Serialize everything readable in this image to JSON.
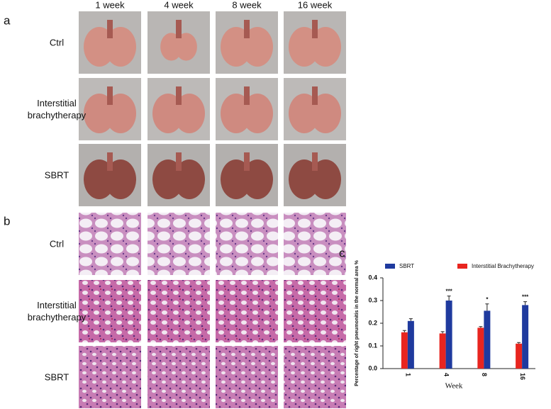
{
  "figure": {
    "panel_labels": [
      "a",
      "b",
      "c"
    ],
    "columns": [
      "1 week",
      "4 week",
      "8 week",
      "16 week"
    ],
    "panel_a": {
      "rows": [
        "Ctrl",
        "Interstitial brachytherapy",
        "SBRT"
      ]
    },
    "panel_b": {
      "rows": [
        "Ctrl",
        "Interstitial brachytherapy",
        "SBRT"
      ]
    }
  },
  "chart_data": {
    "type": "bar",
    "y_label": "Percentage of right pneumonitis in the normal area %",
    "x_label": "Week",
    "categories": [
      "1",
      "4",
      "8",
      "16"
    ],
    "series": [
      {
        "name": "SBRT",
        "color": "#1f3a9e",
        "values": [
          0.21,
          0.3,
          0.255,
          0.28
        ],
        "errors": [
          0.01,
          0.02,
          0.03,
          0.015
        ]
      },
      {
        "name": "Interstitial Brachytherapy",
        "color": "#e8251f",
        "values": [
          0.16,
          0.155,
          0.18,
          0.11
        ],
        "errors": [
          0.008,
          0.008,
          0.005,
          0.005
        ]
      }
    ],
    "significance": [
      null,
      "***",
      "*",
      "***"
    ],
    "ylim": [
      0,
      0.4
    ],
    "yticks": [
      {
        "value": 0,
        "label": "0.0"
      },
      0.1,
      0.2,
      0.3,
      0.4
    ],
    "legend": "top"
  }
}
